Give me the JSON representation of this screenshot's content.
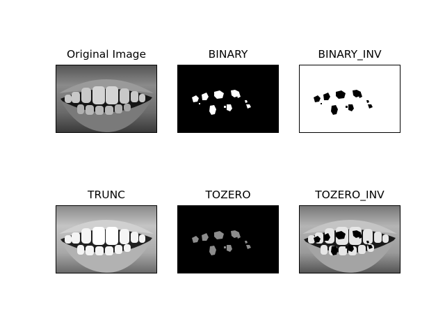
{
  "figure": {
    "panels": [
      {
        "title": "Original Image",
        "variant": "original"
      },
      {
        "title": "BINARY",
        "variant": "binary"
      },
      {
        "title": "BINARY_INV",
        "variant": "binary_inv"
      },
      {
        "title": "TRUNC",
        "variant": "trunc"
      },
      {
        "title": "TOZERO",
        "variant": "tozero"
      },
      {
        "title": "TOZERO_INV",
        "variant": "tozero_inv"
      }
    ]
  }
}
